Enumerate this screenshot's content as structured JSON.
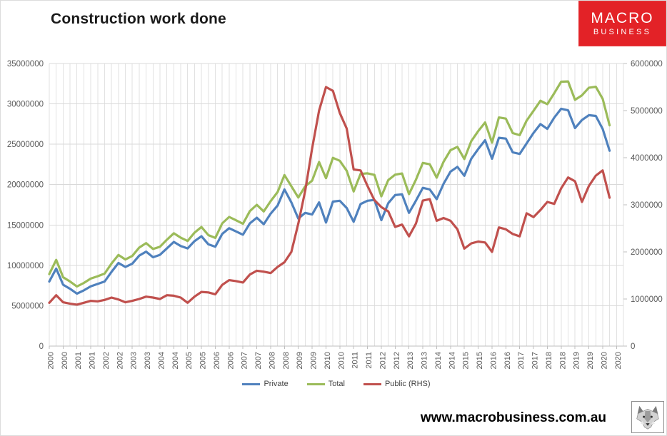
{
  "page": {
    "title": "Construction work done",
    "footer_url": "www.macrobusiness.com.au"
  },
  "logo": {
    "line1": "MACRO",
    "line2": "BUSINESS",
    "bg_color": "#e32227",
    "text_color": "#ffffff"
  },
  "chart_data": {
    "type": "line",
    "title": "Construction work done",
    "x_unit": "quarter",
    "x_start": "2000 Q1",
    "x_end": "2020 Q2",
    "gridlines": true,
    "legend_position": "bottom",
    "x_tick_labels": [
      "2000",
      "2000",
      "2001",
      "2001",
      "2002",
      "2002",
      "2003",
      "2003",
      "2004",
      "2004",
      "2005",
      "2005",
      "2006",
      "2006",
      "2007",
      "2007",
      "2008",
      "2008",
      "2009",
      "2009",
      "2010",
      "2010",
      "2011",
      "2011",
      "2012",
      "2012",
      "2013",
      "2013",
      "2014",
      "2014",
      "2015",
      "2015",
      "2016",
      "2016",
      "2017",
      "2017",
      "2018",
      "2018",
      "2019",
      "2019",
      "2020",
      "2020"
    ],
    "left_axis": {
      "min": 0,
      "max": 35000000,
      "step": 5000000,
      "tick_labels": [
        "0",
        "5000000",
        "10000000",
        "15000000",
        "20000000",
        "25000000",
        "30000000",
        "35000000"
      ]
    },
    "right_axis": {
      "min": 0,
      "max": 6000000,
      "step": 1000000,
      "tick_labels": [
        "0",
        "1000000",
        "2000000",
        "3000000",
        "4000000",
        "5000000",
        "6000000"
      ]
    },
    "series": [
      {
        "name": "Private",
        "axis": "left",
        "color": "#4F81BD",
        "values": [
          8000000,
          9600000,
          7600000,
          7100000,
          6500000,
          6900000,
          7400000,
          7700000,
          8000000,
          9200000,
          10300000,
          9800000,
          10200000,
          11200000,
          11700000,
          11000000,
          11300000,
          12100000,
          12900000,
          12400000,
          12100000,
          13000000,
          13600000,
          12600000,
          12300000,
          13900000,
          14600000,
          14200000,
          13800000,
          15200000,
          15900000,
          15100000,
          16400000,
          17400000,
          19400000,
          17800000,
          15800000,
          16500000,
          16300000,
          17800000,
          15300000,
          17900000,
          18000000,
          17100000,
          15400000,
          17600000,
          18000000,
          18100000,
          15600000,
          17700000,
          18700000,
          18800000,
          16500000,
          18000000,
          19600000,
          19400000,
          18200000,
          20100000,
          21600000,
          22200000,
          21100000,
          23200000,
          24400000,
          25500000,
          23200000,
          25800000,
          25700000,
          24000000,
          23800000,
          25100000,
          26400000,
          27500000,
          26900000,
          28300000,
          29400000,
          29200000,
          27000000,
          28000000,
          28600000,
          28500000,
          26900000,
          24200000
        ]
      },
      {
        "name": "Total",
        "axis": "left",
        "color": "#9BBB59",
        "values": [
          8920000,
          10680000,
          8530000,
          8000000,
          7380000,
          7820000,
          8360000,
          8650000,
          8980000,
          10230000,
          11290000,
          10730000,
          11160000,
          12200000,
          12750000,
          12030000,
          12300000,
          13180000,
          13970000,
          13430000,
          13020000,
          14050000,
          14750000,
          13740000,
          13400000,
          15200000,
          16000000,
          15580000,
          15150000,
          16720000,
          17500000,
          16680000,
          17950000,
          19080000,
          21180000,
          19800000,
          18400000,
          19800000,
          20500000,
          22800000,
          20800000,
          23320000,
          22950000,
          21720000,
          19150000,
          21330000,
          21400000,
          21200000,
          18550000,
          20560000,
          21230000,
          21380000,
          18830000,
          20600000,
          22690000,
          22520000,
          20860000,
          22820000,
          24260000,
          24680000,
          23170000,
          25380000,
          26620000,
          27700000,
          25200000,
          28320000,
          28180000,
          26380000,
          26130000,
          27920000,
          29140000,
          30390000,
          29960000,
          31320000,
          32750000,
          32780000,
          30500000,
          31060000,
          32000000,
          32120000,
          30630000,
          27350000
        ]
      },
      {
        "name": "Public (RHS)",
        "axis": "right",
        "color": "#C0504D",
        "values": [
          920000,
          1080000,
          930000,
          900000,
          880000,
          920000,
          960000,
          950000,
          980000,
          1030000,
          990000,
          930000,
          960000,
          1000000,
          1050000,
          1030000,
          1000000,
          1080000,
          1070000,
          1030000,
          920000,
          1050000,
          1150000,
          1140000,
          1100000,
          1300000,
          1400000,
          1380000,
          1350000,
          1520000,
          1600000,
          1580000,
          1550000,
          1680000,
          1780000,
          2000000,
          2600000,
          3300000,
          4200000,
          5000000,
          5500000,
          5420000,
          4950000,
          4620000,
          3750000,
          3730000,
          3400000,
          3100000,
          2950000,
          2860000,
          2530000,
          2580000,
          2330000,
          2600000,
          3090000,
          3120000,
          2660000,
          2720000,
          2660000,
          2480000,
          2070000,
          2180000,
          2220000,
          2200000,
          2000000,
          2520000,
          2480000,
          2380000,
          2330000,
          2820000,
          2740000,
          2890000,
          3060000,
          3020000,
          3350000,
          3580000,
          3500000,
          3060000,
          3400000,
          3620000,
          3730000,
          3150000
        ]
      }
    ]
  }
}
